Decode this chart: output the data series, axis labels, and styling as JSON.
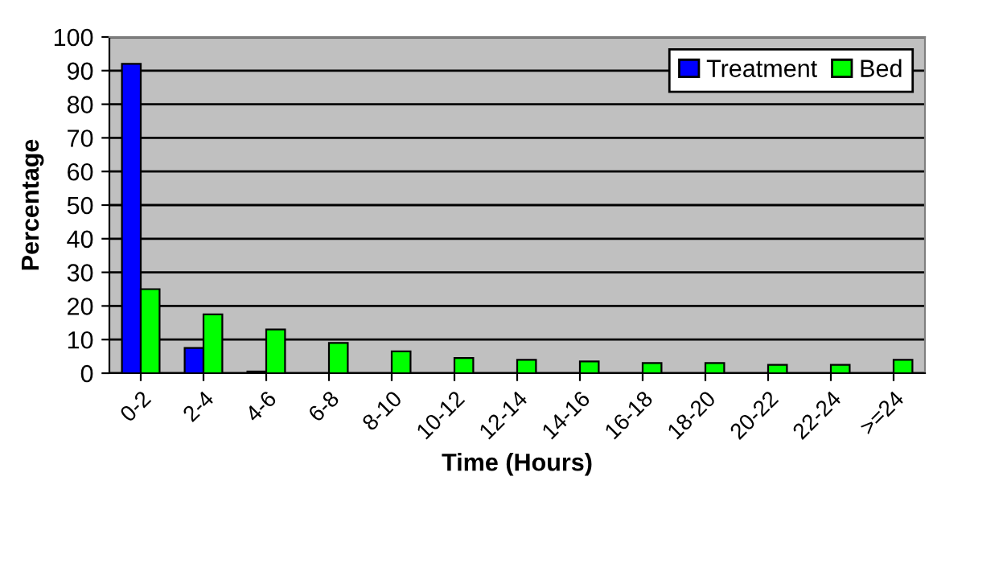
{
  "chart_data": {
    "type": "bar",
    "xlabel": "Time (Hours)",
    "ylabel": "Percentage",
    "categories": [
      "0-2",
      "2-4",
      "4-6",
      "6-8",
      "8-10",
      "10-12",
      "12-14",
      "14-16",
      "16-18",
      "18-20",
      "20-22",
      "22-24",
      ">=24"
    ],
    "series": [
      {
        "name": "Treatment",
        "color": "#0000ff",
        "values": [
          92,
          7.5,
          0.5,
          null,
          null,
          null,
          null,
          null,
          null,
          null,
          null,
          null,
          null
        ]
      },
      {
        "name": "Bed",
        "color": "#00ff00",
        "values": [
          25,
          17.5,
          13,
          9,
          6.5,
          4.5,
          4,
          3.5,
          3,
          3,
          2.5,
          2.5,
          4
        ]
      }
    ],
    "ylim": [
      0,
      100
    ],
    "yticks": [
      0,
      10,
      20,
      30,
      40,
      50,
      60,
      70,
      80,
      90,
      100
    ],
    "grid": "y",
    "legend": "top right"
  }
}
